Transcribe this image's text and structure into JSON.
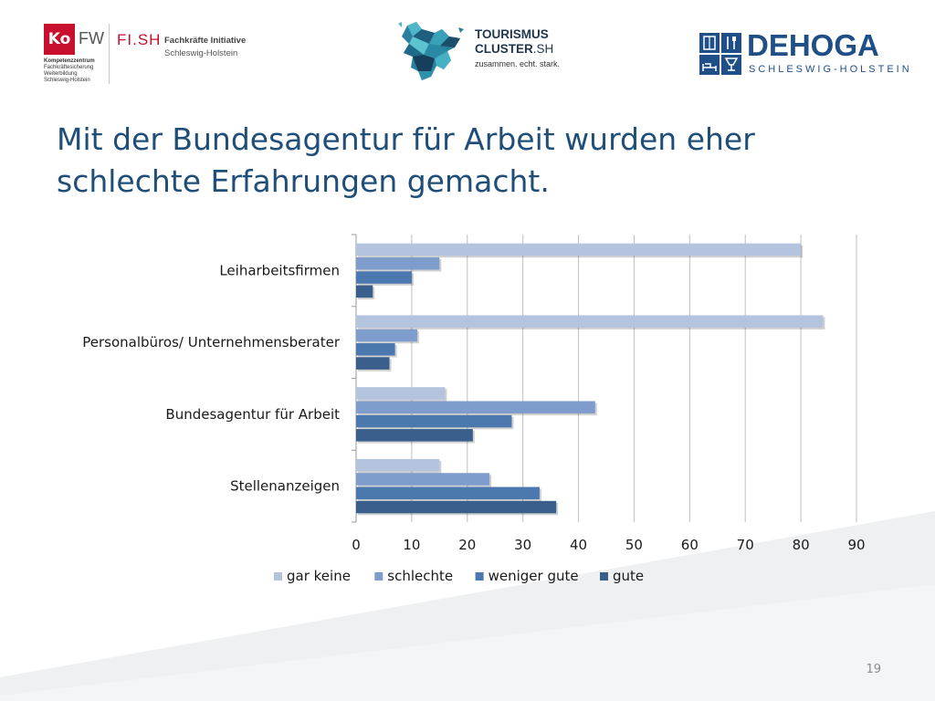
{
  "slide": {
    "title_line1": "Mit der Bundesagentur für Arbeit wurden eher",
    "title_line2": "schlechte Erfahrungen gemacht.",
    "page_number": "19"
  },
  "logos": {
    "kofw": {
      "box_text": "Ko",
      "fw_text": "FW",
      "line1": "Kompetenzzentrum",
      "line2": "Fachkräftesicherung",
      "line3": "Weiterbildung",
      "line4": "Schleswig-Holstein"
    },
    "fish": {
      "name": "FI.SH",
      "title": "Fachkräfte Initiative",
      "subtitle": "Schleswig-Holstein"
    },
    "tourismus": {
      "line1": "TOURISMUS",
      "line2a": "CLUSTER",
      "line2b": ".SH",
      "tagline": "zusammen. echt. stark."
    },
    "dehoga": {
      "name": "DEHOGA",
      "subtitle": "SCHLESWIG-HOLSTEIN"
    }
  },
  "colors": {
    "title": "#1f4e79",
    "gar_keine": "#b4c4de",
    "schlechte": "#7e9ccc",
    "weniger_gute": "#4c78b0",
    "gute": "#3a5f8c"
  },
  "chart_data": {
    "type": "bar",
    "orientation": "horizontal",
    "categories": [
      "Leiharbeitsfirmen",
      "Personalbüros/ Unternehmensberater",
      "Bundesagentur für Arbeit",
      "Stellenanzeigen"
    ],
    "series": [
      {
        "name": "gar keine",
        "color": "#b4c4de",
        "values": [
          80,
          84,
          16,
          15
        ]
      },
      {
        "name": "schlechte",
        "color": "#7e9ccc",
        "values": [
          15,
          11,
          43,
          24
        ]
      },
      {
        "name": "weniger gute",
        "color": "#4c78b0",
        "values": [
          10,
          7,
          28,
          33
        ]
      },
      {
        "name": "gute",
        "color": "#3a5f8c",
        "values": [
          3,
          6,
          21,
          36
        ]
      }
    ],
    "xlim": [
      0,
      90
    ],
    "xticks": [
      0,
      10,
      20,
      30,
      40,
      50,
      60,
      70,
      80,
      90
    ],
    "grid": true,
    "legend_position": "bottom"
  }
}
